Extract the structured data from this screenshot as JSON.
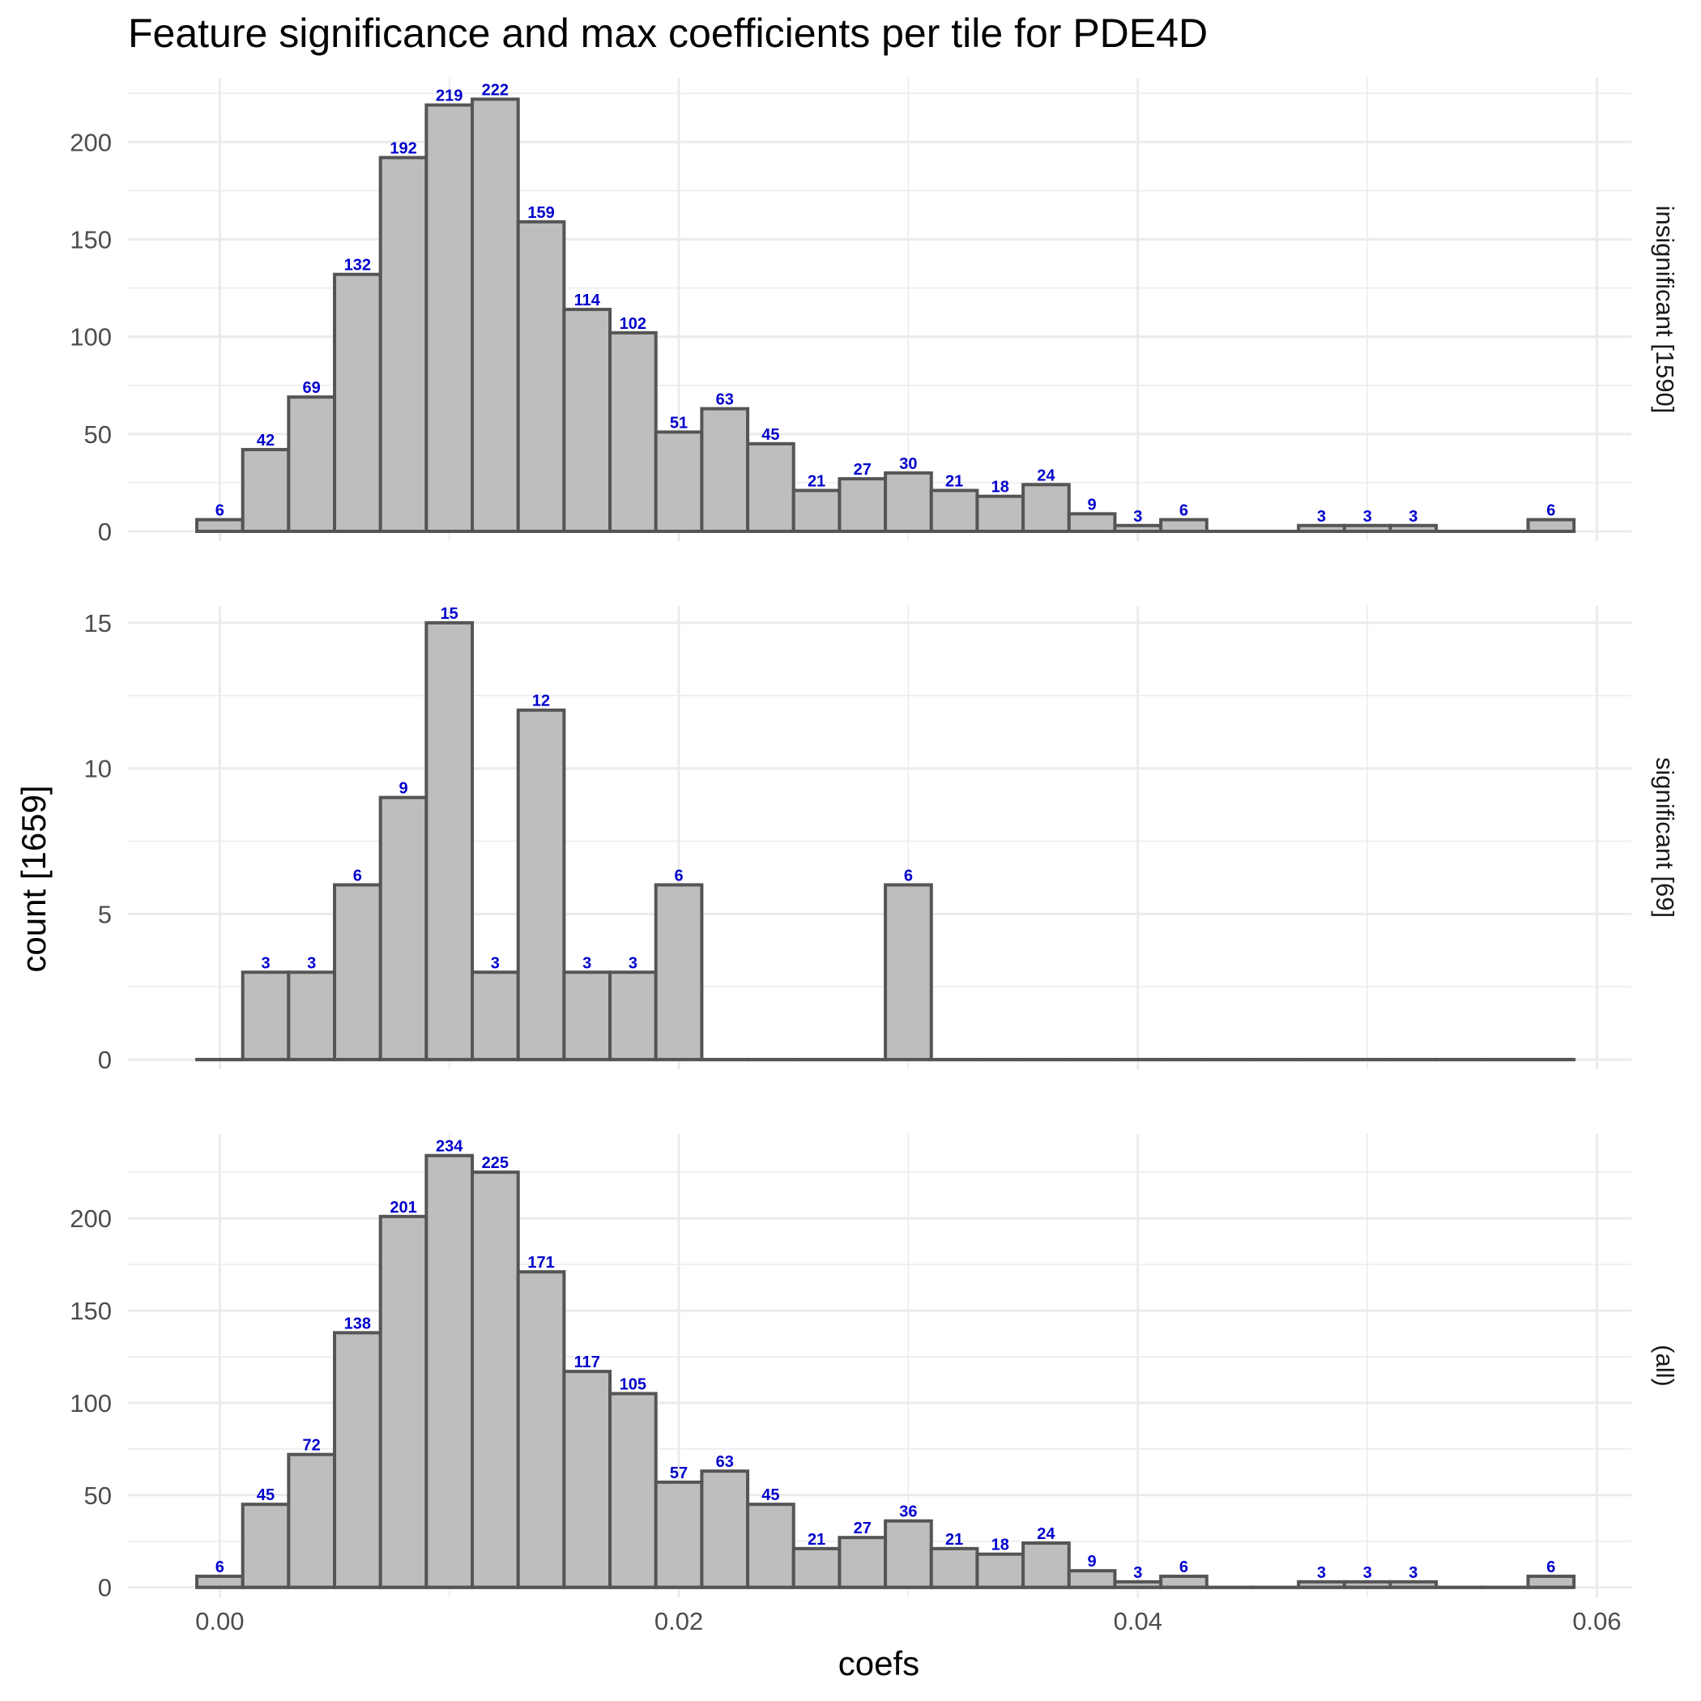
{
  "chart_data": {
    "type": "bar",
    "title": "Feature significance and max coefficients per tile for PDE4D",
    "xlabel": "coefs",
    "ylabel": "count [1659]",
    "bin_width": 0.002,
    "bin_centers": [
      0.0,
      0.002,
      0.004,
      0.006,
      0.008,
      0.01,
      0.012,
      0.014,
      0.016,
      0.018,
      0.02,
      0.022,
      0.024,
      0.026,
      0.028,
      0.03,
      0.032,
      0.034,
      0.036,
      0.038,
      0.04,
      0.042,
      0.044,
      0.046,
      0.048,
      0.05,
      0.052,
      0.054,
      0.056,
      0.058
    ],
    "xlim": [
      -0.004,
      0.0615
    ],
    "x_ticks": [
      0.0,
      0.02,
      0.04,
      0.06
    ],
    "x_tick_labels": [
      "0.00",
      "0.02",
      "0.04",
      "0.06"
    ],
    "bar_fill": "#bebebe",
    "bar_outline": "#555555",
    "label_color": "#0000cd",
    "grid": true,
    "panels": [
      {
        "strip_label": "insignificant [1590]",
        "values": [
          6,
          42,
          69,
          132,
          192,
          219,
          222,
          159,
          114,
          102,
          51,
          63,
          45,
          21,
          27,
          30,
          21,
          18,
          24,
          9,
          3,
          6,
          0,
          0,
          3,
          3,
          3,
          0,
          0,
          6
        ],
        "ylim": [
          -5,
          233
        ],
        "y_ticks": [
          0,
          50,
          100,
          150,
          200
        ],
        "y_tick_labels": [
          "0",
          "50",
          "100",
          "150",
          "200"
        ]
      },
      {
        "strip_label": "significant [69]",
        "values": [
          0,
          3,
          3,
          6,
          9,
          15,
          3,
          12,
          3,
          3,
          6,
          0,
          0,
          0,
          0,
          6,
          0,
          0,
          0,
          0,
          0,
          0,
          0,
          0,
          0,
          0,
          0,
          0,
          0,
          0
        ],
        "ylim": [
          -0.33,
          15.58
        ],
        "y_ticks": [
          0,
          5,
          10,
          15
        ],
        "y_tick_labels": [
          "0",
          "5",
          "10",
          "15"
        ]
      },
      {
        "strip_label": "(all)",
        "values": [
          6,
          45,
          72,
          138,
          201,
          234,
          225,
          171,
          117,
          105,
          57,
          63,
          45,
          21,
          27,
          36,
          21,
          18,
          24,
          9,
          3,
          6,
          0,
          0,
          3,
          3,
          3,
          0,
          0,
          6
        ],
        "ylim": [
          -5.4,
          245.7
        ],
        "y_ticks": [
          0,
          50,
          100,
          150,
          200
        ],
        "y_tick_labels": [
          "0",
          "50",
          "100",
          "150",
          "200"
        ]
      }
    ]
  }
}
